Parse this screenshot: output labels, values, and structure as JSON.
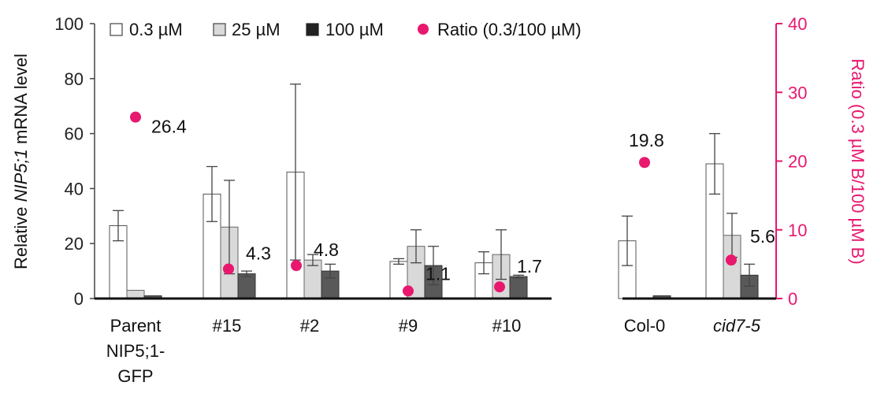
{
  "chart_data": {
    "type": "bar",
    "categories": [
      "Parent NIP5;1-GFP",
      "#15",
      "#2",
      "#9",
      "#10",
      "Col-0",
      "cid7-5"
    ],
    "series": [
      {
        "name": "0.3 µM",
        "color": "#ffffff",
        "values": [
          26.5,
          38,
          46,
          13.5,
          13,
          21,
          49
        ],
        "err": [
          5.5,
          10,
          32,
          1,
          4,
          9,
          11
        ]
      },
      {
        "name": "25 µM",
        "color": "#d9d9d9",
        "values": [
          3,
          26,
          14,
          19,
          16,
          null,
          23
        ],
        "err": [
          null,
          17,
          2,
          6,
          9,
          null,
          8
        ]
      },
      {
        "name": "100 µM",
        "color": "#595959",
        "values": [
          1,
          9,
          10,
          12,
          8,
          1,
          8.5
        ],
        "err": [
          null,
          1,
          2.5,
          7,
          0.5,
          null,
          4
        ]
      }
    ],
    "ratio": {
      "name": "Ratio (0.3/100 µM)",
      "color": "#e8186e",
      "values": [
        26.4,
        4.3,
        4.8,
        1.1,
        1.7,
        19.8,
        5.6
      ],
      "labels": [
        "26.4",
        "4.3",
        "4.8",
        "1.1",
        "1.7",
        "19.8",
        "5.6"
      ]
    },
    "ylabel_pre": "Relative ",
    "ylabel_italic": "NIP5;1",
    "ylabel_post": " mRNA level",
    "y2label": "Ratio (0.3 µM B/100 µM B)",
    "ylim": [
      0,
      100
    ],
    "y2lim": [
      0,
      40
    ],
    "yticks": [
      "0",
      "20",
      "40",
      "60",
      "80",
      "100"
    ],
    "y2ticks": [
      "0",
      "10",
      "20",
      "30",
      "40"
    ],
    "xlabels": [
      [
        "Parent",
        "NIP5;1-",
        "GFP"
      ],
      [
        "#15"
      ],
      [
        "#2"
      ],
      [
        "#9"
      ],
      [
        "#10"
      ],
      [
        "Col-0"
      ],
      [
        "cid7-5"
      ]
    ],
    "legend_position": "top",
    "grid": false
  }
}
